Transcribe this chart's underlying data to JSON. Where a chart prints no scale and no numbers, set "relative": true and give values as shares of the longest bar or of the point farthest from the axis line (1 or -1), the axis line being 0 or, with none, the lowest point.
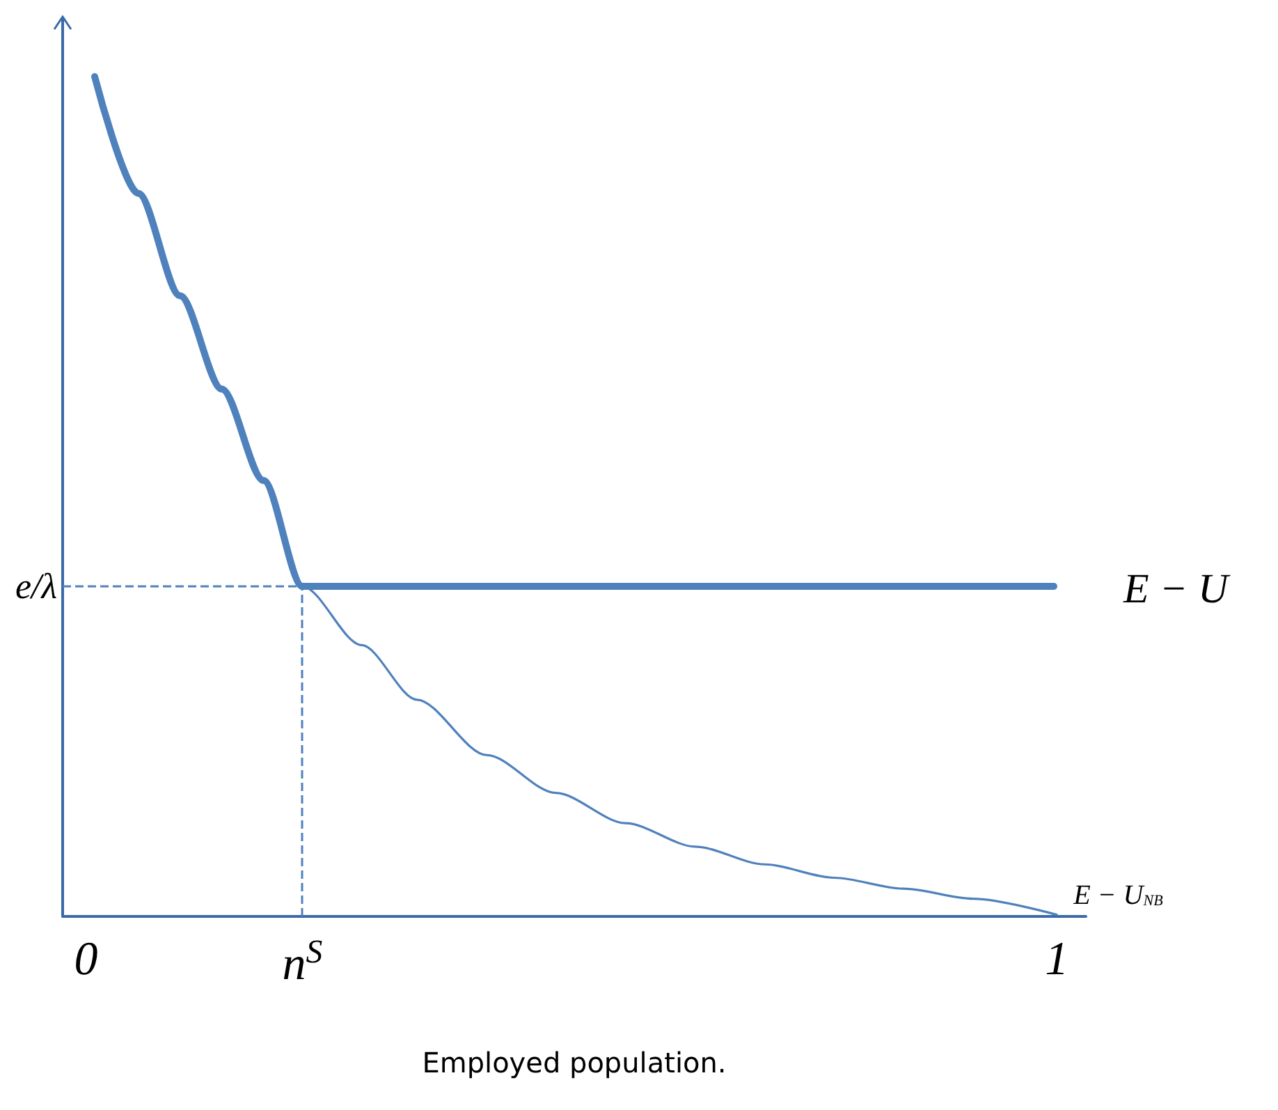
{
  "chart_data": {
    "type": "line",
    "relative": true,
    "xlabel": "Employed population.",
    "xlim": [
      -0.024,
      1.03
    ],
    "xticks": [
      0,
      {
        "value": 0.223,
        "label": "n$^{S}$"
      },
      1
    ],
    "tick_labels": "x",
    "grid": false,
    "legend": false,
    "marker": "none",
    "line_style": "solid",
    "series": [
      {
        "name": "E − U",
        "color": "#4f81bd",
        "x": [
          0.009,
          0.054,
          0.097,
          0.14,
          0.183,
          0.223,
          0.997
        ],
        "values": [
          1,
          0.861,
          0.739,
          0.628,
          0.519,
          0.393,
          0.393
        ]
      },
      {
        "name": "E − U$_{NB}$",
        "color": "#4f81bd",
        "x": [
          0.009,
          0.054,
          0.097,
          0.14,
          0.183,
          0.223,
          0.284,
          0.341,
          0.413,
          0.484,
          0.556,
          0.628,
          0.699,
          0.771,
          0.842,
          0.914,
          1.0
        ],
        "values": [
          1,
          0.861,
          0.739,
          0.628,
          0.519,
          0.393,
          0.323,
          0.258,
          0.192,
          0.147,
          0.111,
          0.083,
          0.062,
          0.046,
          0.033,
          0.021,
          0.002
        ]
      }
    ],
    "ref_lines": [
      {
        "axis": "y",
        "value": 0.393,
        "label": "e/λ",
        "color": "#4f81bd",
        "line_style": "dashed"
      },
      {
        "axis": "x",
        "value": 0.223,
        "color": "#4f81bd",
        "line_style": "dashed"
      }
    ]
  }
}
